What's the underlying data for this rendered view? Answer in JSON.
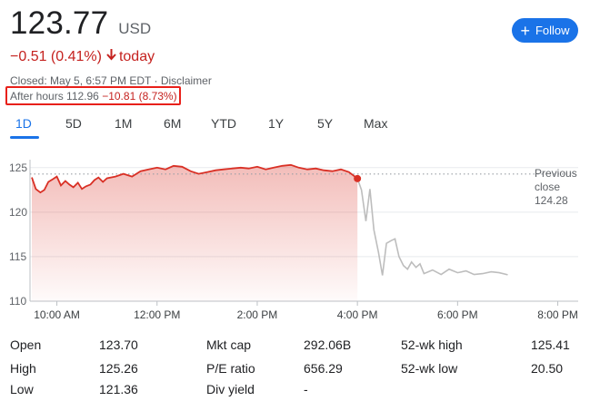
{
  "quote": {
    "price": "123.77",
    "currency": "USD",
    "change": "−0.51 (0.41%)",
    "change_arrow": "🡓",
    "change_period": "today",
    "closed_info": "Closed: May 5, 6:57 PM EDT · Disclaimer",
    "after_hours_label": "After hours",
    "after_hours_price": "112.96",
    "after_hours_change": "−10.81 (8.73%)"
  },
  "follow_button": {
    "label": "Follow",
    "icon": "plus-icon"
  },
  "tabs": [
    "1D",
    "5D",
    "1M",
    "6M",
    "YTD",
    "1Y",
    "5Y",
    "Max"
  ],
  "active_tab": "1D",
  "chart_data": {
    "type": "line",
    "y_ticks": [
      "125",
      "120",
      "115",
      "110"
    ],
    "x_ticks": [
      "10:00 AM",
      "12:00 PM",
      "2:00 PM",
      "4:00 PM",
      "6:00 PM",
      "8:00 PM"
    ],
    "ylim": [
      110,
      126.3
    ],
    "previous_close": {
      "label_line1": "Previous",
      "label_line2": "close",
      "value": "124.28",
      "y": 124.28
    },
    "colors": {
      "regular": "#d93025",
      "after_hours": "#bdbdbd",
      "dots": "#bdbdbd",
      "grid": "#e8eaed"
    },
    "regular_session": {
      "x_hours": [
        9.5,
        9.58,
        9.67,
        9.75,
        9.83,
        9.92,
        10.0,
        10.08,
        10.17,
        10.25,
        10.33,
        10.42,
        10.5,
        10.58,
        10.67,
        10.75,
        10.83,
        10.92,
        11.0,
        11.17,
        11.33,
        11.5,
        11.67,
        11.83,
        12.0,
        12.17,
        12.33,
        12.5,
        12.67,
        12.83,
        13.0,
        13.17,
        13.33,
        13.5,
        13.67,
        13.83,
        14.0,
        14.17,
        14.33,
        14.5,
        14.67,
        14.83,
        15.0,
        15.17,
        15.33,
        15.5,
        15.67,
        15.83,
        16.0
      ],
      "values": [
        123.9,
        122.6,
        122.2,
        122.5,
        123.4,
        123.7,
        124.0,
        123.0,
        123.5,
        123.1,
        122.8,
        123.3,
        122.6,
        122.9,
        123.1,
        123.6,
        123.9,
        123.4,
        123.8,
        124.0,
        124.3,
        124.0,
        124.6,
        124.8,
        125.0,
        124.8,
        125.2,
        125.1,
        124.6,
        124.3,
        124.5,
        124.7,
        124.8,
        124.9,
        125.0,
        124.9,
        125.1,
        124.8,
        125.0,
        125.2,
        125.3,
        125.0,
        124.8,
        124.9,
        124.7,
        124.6,
        124.8,
        124.5,
        123.77
      ]
    },
    "after_hours": {
      "x_hours": [
        16.0,
        16.08,
        16.17,
        16.25,
        16.33,
        16.42,
        16.5,
        16.58,
        16.67,
        16.75,
        16.83,
        16.92,
        17.0,
        17.08,
        17.17,
        17.25,
        17.33,
        17.5,
        17.67,
        17.83,
        18.0,
        18.17,
        18.33,
        18.5,
        18.67,
        18.83,
        19.0
      ],
      "values": [
        123.77,
        122.5,
        119.0,
        122.6,
        118.0,
        115.5,
        112.9,
        116.5,
        116.8,
        117.0,
        115.0,
        114.0,
        113.6,
        114.4,
        113.8,
        114.2,
        113.1,
        113.5,
        113.0,
        113.6,
        113.2,
        113.4,
        113.0,
        113.1,
        113.3,
        113.2,
        112.96
      ]
    }
  },
  "stats": {
    "col1": [
      {
        "label": "Open",
        "value": "123.70"
      },
      {
        "label": "High",
        "value": "125.26"
      },
      {
        "label": "Low",
        "value": "121.36"
      }
    ],
    "col2": [
      {
        "label": "Mkt cap",
        "value": "292.06B"
      },
      {
        "label": "P/E ratio",
        "value": "656.29"
      },
      {
        "label": "Div yield",
        "value": "-"
      }
    ],
    "col3": [
      {
        "label": "52-wk high",
        "value": "125.41"
      },
      {
        "label": "52-wk low",
        "value": "20.50"
      }
    ]
  }
}
